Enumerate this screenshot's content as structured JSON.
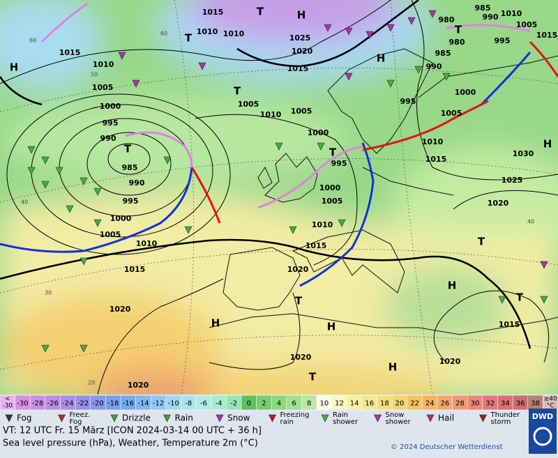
{
  "map": {
    "pressure_labels": [
      "1015",
      "1010",
      "1010",
      "1015",
      "1010",
      "1005",
      "1000",
      "995",
      "990",
      "985",
      "990",
      "995",
      "1000",
      "1005",
      "1010",
      "1015",
      "1020",
      "1020",
      "1025",
      "1020",
      "1015",
      "1005",
      "1010",
      "1005",
      "1000",
      "995",
      "1000",
      "1005",
      "1010",
      "1015",
      "1020",
      "1020",
      "1020",
      "985",
      "990",
      "1010",
      "1005",
      "995",
      "980",
      "980",
      "985",
      "990",
      "995",
      "1000",
      "1005",
      "1010",
      "1015",
      "1025",
      "1030",
      "1020",
      "1015",
      "1015"
    ],
    "pressure_centers": [
      "H",
      "T",
      "H",
      "T",
      "T",
      "T",
      "T",
      "H",
      "T",
      "H",
      "T",
      "H",
      "T",
      "T",
      "H",
      "H",
      "H",
      "T"
    ],
    "grid_labels": [
      "60",
      "50",
      "40",
      "30",
      "20",
      "60",
      "40"
    ]
  },
  "color_scale": {
    "low": {
      "lines": [
        "<",
        "-30"
      ],
      "color": "#e4b4f0"
    },
    "steps": [
      {
        "label": -30,
        "color": "#d890e8"
      },
      {
        "label": -28,
        "color": "#c890e4"
      },
      {
        "label": -26,
        "color": "#b890e4"
      },
      {
        "label": -24,
        "color": "#a890e4"
      },
      {
        "label": -22,
        "color": "#9890e8"
      },
      {
        "label": -20,
        "color": "#8898ec"
      },
      {
        "label": -18,
        "color": "#78a0f0"
      },
      {
        "label": -16,
        "color": "#70acf0"
      },
      {
        "label": -14,
        "color": "#80b8f0"
      },
      {
        "label": -12,
        "color": "#90c8f4"
      },
      {
        "label": -10,
        "color": "#a0d8f4"
      },
      {
        "label": -8,
        "color": "#a8e4f0"
      },
      {
        "label": -6,
        "color": "#b0ece4"
      },
      {
        "label": -4,
        "color": "#a8ecd0"
      },
      {
        "label": -2,
        "color": "#98e4b8"
      },
      {
        "label": 0,
        "color": "#60c060"
      },
      {
        "label": 2,
        "color": "#78cc70"
      },
      {
        "label": 4,
        "color": "#8cd880"
      },
      {
        "label": 6,
        "color": "#a0e090"
      },
      {
        "label": 8,
        "color": "#b8e8a0"
      },
      {
        "label": 10,
        "color": "#fafae8"
      },
      {
        "label": 12,
        "color": "#f8f8c4"
      },
      {
        "label": 14,
        "color": "#f4f0a4"
      },
      {
        "label": 16,
        "color": "#f2e890"
      },
      {
        "label": 18,
        "color": "#f2e080"
      },
      {
        "label": 20,
        "color": "#f2d470"
      },
      {
        "label": 22,
        "color": "#f2c464"
      },
      {
        "label": 24,
        "color": "#f2b464"
      },
      {
        "label": 26,
        "color": "#f2a86c"
      },
      {
        "label": 28,
        "color": "#f09874"
      },
      {
        "label": 30,
        "color": "#ec8878"
      },
      {
        "label": 32,
        "color": "#e47878"
      },
      {
        "label": 34,
        "color": "#dc7070"
      },
      {
        "label": 36,
        "color": "#d06c6c"
      },
      {
        "label": 38,
        "color": "#b88070"
      }
    ],
    "high": {
      "lines": [
        "≥40",
        "°C"
      ],
      "color": "#dcbcbc"
    }
  },
  "weather_legend": [
    {
      "lines": [
        "Fog"
      ]
    },
    {
      "lines": [
        "Freez.",
        "Fog"
      ]
    },
    {
      "lines": [
        "Drizzle"
      ]
    },
    {
      "lines": [
        "Rain"
      ]
    },
    {
      "lines": [
        "Snow"
      ]
    },
    {
      "lines": [
        "Freezing",
        "rain"
      ]
    },
    {
      "lines": [
        "Rain",
        "shower"
      ]
    },
    {
      "lines": [
        "Snow",
        "shower"
      ]
    },
    {
      "lines": [
        "Hail"
      ]
    },
    {
      "lines": [
        "Thunder",
        "storm"
      ]
    }
  ],
  "footer": {
    "valid_time": "VT: 12 UTC Fr.  15 März [ICON 2024-03-14  00 UTC + 36 h]",
    "description": "Sea level pressure (hPa), Weather, Temperature 2m (°C)",
    "copyright": "© 2024 Deutscher Wetterdienst",
    "logo": "DWD"
  }
}
